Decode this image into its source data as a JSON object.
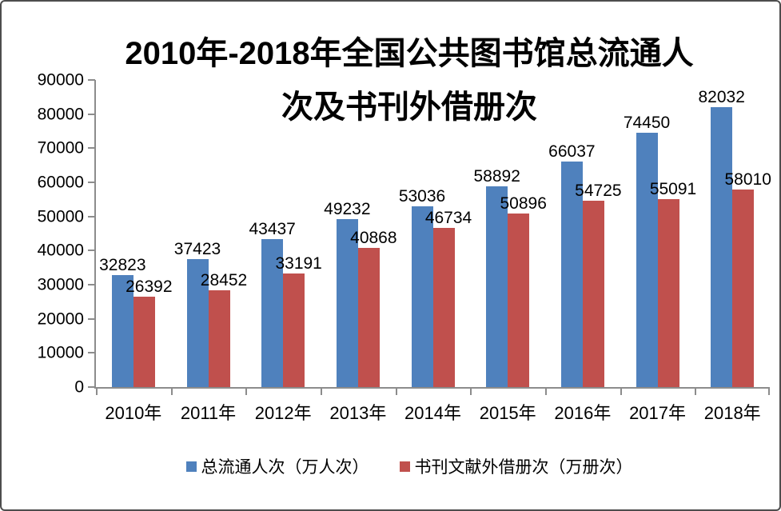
{
  "title": {
    "line1": "2010年-2018年全国公共图书馆总流通人",
    "line2": "次及书刊外借册次"
  },
  "chart_data": {
    "type": "bar",
    "title": "2010年-2018年全国公共图书馆总流通人次及书刊外借册次",
    "categories": [
      "2010年",
      "2011年",
      "2012年",
      "2013年",
      "2014年",
      "2015年",
      "2016年",
      "2017年",
      "2018年"
    ],
    "series": [
      {
        "name": "总流通人次（万人次）",
        "color": "#4F81BD",
        "values": [
          32823,
          37423,
          43437,
          49232,
          53036,
          58892,
          66037,
          74450,
          82032
        ]
      },
      {
        "name": "书刊文献外借册次（万册次）",
        "color": "#C0504D",
        "values": [
          26392,
          28452,
          33191,
          40868,
          46734,
          50896,
          54725,
          55091,
          58010
        ]
      }
    ],
    "xlabel": "",
    "ylabel": "",
    "ylim": [
      0,
      90000
    ],
    "y_ticks": [
      0,
      10000,
      20000,
      30000,
      40000,
      50000,
      60000,
      70000,
      80000,
      90000
    ],
    "grid": false,
    "data_labels": true,
    "legend_position": "bottom",
    "axis_color": "#8C8C8C"
  },
  "legend": {
    "items": [
      {
        "label": "总流通人次（万人次）",
        "color": "#4F81BD"
      },
      {
        "label": "书刊文献外借册次（万册次）",
        "color": "#C0504D"
      }
    ]
  }
}
